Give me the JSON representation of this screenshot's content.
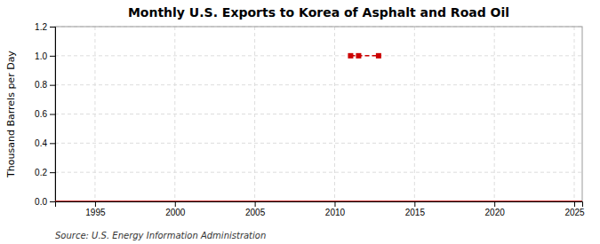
{
  "chart_data": {
    "type": "line",
    "title": "Monthly U.S. Exports to Korea of Asphalt and Road Oil",
    "ylabel": "Thousand Barrels per Day",
    "source": "Source: U.S. Energy Information Administration",
    "series": [
      {
        "x": [
          1992.5,
          2025.5
        ],
        "values": [
          0.0,
          0.0
        ],
        "color": "#cc0000",
        "line_style": "solid"
      },
      {
        "x": [
          2011.0,
          2011.5,
          2012.75
        ],
        "values": [
          1.0,
          1.0,
          1.0
        ],
        "color": "#cc0000",
        "line_style": "dashed",
        "marker": "square"
      }
    ],
    "xlim": [
      1992.5,
      2025.5
    ],
    "xticks": [
      1995,
      2000,
      2005,
      2010,
      2015,
      2020,
      2025
    ],
    "ylim": [
      0.0,
      1.2
    ],
    "yticks": [
      {
        "value": 0.0,
        "label": "0.0"
      },
      0.2,
      0.4,
      0.6,
      0.8,
      {
        "value": 1.0,
        "label": "1.0"
      },
      1.2
    ],
    "grid": true
  }
}
